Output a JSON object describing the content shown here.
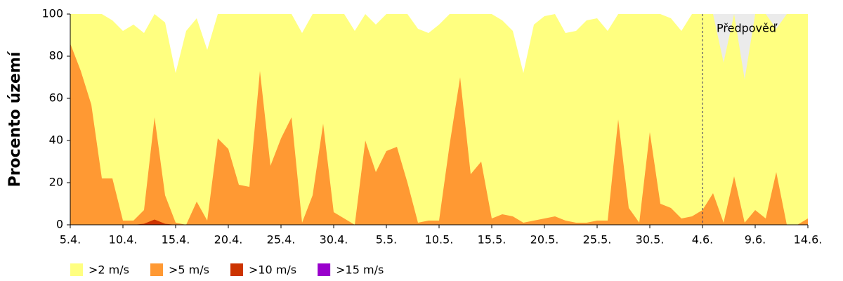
{
  "chart_data": {
    "type": "area",
    "ylabel": "Procento území",
    "categories": [
      "5.4.",
      null,
      null,
      null,
      null,
      "10.4.",
      null,
      null,
      null,
      null,
      "15.4.",
      null,
      null,
      null,
      null,
      "20.4.",
      null,
      null,
      null,
      null,
      "25.4.",
      null,
      null,
      null,
      null,
      "30.4.",
      null,
      null,
      null,
      null,
      "5.5.",
      null,
      null,
      null,
      null,
      "10.5.",
      null,
      null,
      null,
      null,
      "15.5.",
      null,
      null,
      null,
      null,
      "20.5.",
      null,
      null,
      null,
      null,
      "25.5.",
      null,
      null,
      null,
      null,
      "30.5.",
      null,
      null,
      null,
      null,
      "4.6.",
      null,
      null,
      null,
      null,
      "9.6.",
      null,
      null,
      null,
      null,
      "14.6."
    ],
    "series": [
      {
        "name": ">2 m/s",
        "color": "#ffff80",
        "values": [
          100,
          100,
          100,
          100,
          97,
          92,
          95,
          91,
          100,
          96,
          72,
          92,
          98,
          83,
          100,
          100,
          100,
          100,
          100,
          100,
          100,
          100,
          91,
          100,
          100,
          100,
          100,
          92,
          100,
          95,
          100,
          100,
          100,
          93,
          91,
          95,
          100,
          100,
          100,
          100,
          100,
          97,
          92,
          72,
          95,
          99,
          100,
          91,
          92,
          97,
          98,
          92,
          100,
          100,
          100,
          100,
          100,
          98,
          92,
          100,
          100,
          100,
          77,
          100,
          69,
          100,
          100,
          93,
          100,
          100,
          100
        ]
      },
      {
        "name": ">5 m/s",
        "color": "#ff9933",
        "values": [
          86,
          73,
          57,
          22,
          22,
          2,
          2,
          7,
          51,
          14,
          1,
          0,
          11,
          2,
          41,
          36,
          19,
          18,
          73,
          28,
          41,
          51,
          1,
          14,
          48,
          6,
          3,
          0,
          40,
          25,
          35,
          37,
          20,
          1,
          2,
          2,
          38,
          70,
          24,
          30,
          3,
          5,
          4,
          1,
          2,
          3,
          4,
          2,
          1,
          1,
          2,
          2,
          50,
          8,
          1,
          44,
          10,
          8,
          3,
          4,
          7,
          15,
          1,
          23,
          1,
          7,
          3,
          25,
          0,
          0,
          3
        ]
      },
      {
        "name": ">10 m/s",
        "color": "#cc3300",
        "values": [
          0,
          0,
          0,
          0,
          0,
          0,
          0,
          0.5,
          2.5,
          0.5,
          0,
          0,
          0,
          0,
          0,
          0,
          0,
          0,
          0,
          0,
          0,
          0,
          0,
          0,
          0,
          0,
          0,
          0,
          0,
          0,
          0,
          0,
          0,
          0,
          0,
          0,
          0,
          0,
          0,
          0,
          0,
          0,
          0,
          0,
          0,
          0,
          0,
          0,
          0,
          0,
          0,
          0,
          0,
          0,
          0,
          0,
          0,
          0,
          0,
          0,
          0,
          0,
          0,
          0,
          0,
          0,
          0,
          0,
          0,
          0,
          0
        ]
      },
      {
        "name": ">15 m/s",
        "color": "#9900cc",
        "values": [
          0,
          0,
          0,
          0,
          0,
          0,
          0,
          0,
          0,
          0,
          0,
          0,
          0,
          0,
          0,
          0,
          0,
          0,
          0,
          0,
          0,
          0,
          0,
          0,
          0,
          0,
          0,
          0,
          0,
          0,
          0,
          0,
          0,
          0,
          0,
          0,
          0,
          0,
          0,
          0,
          0,
          0,
          0,
          0,
          0,
          0,
          0,
          0,
          0,
          0,
          0,
          0,
          0,
          0,
          0,
          0,
          0,
          0,
          0,
          0,
          0,
          0,
          0,
          0,
          0,
          0,
          0,
          0,
          0,
          0,
          0
        ]
      }
    ],
    "ylim": [
      0,
      100
    ],
    "yticks": [
      0,
      20,
      40,
      60,
      80,
      100
    ],
    "forecast_label": "Předpověď",
    "forecast_start": "4.6.",
    "forecast_color": "#ebebeb"
  }
}
